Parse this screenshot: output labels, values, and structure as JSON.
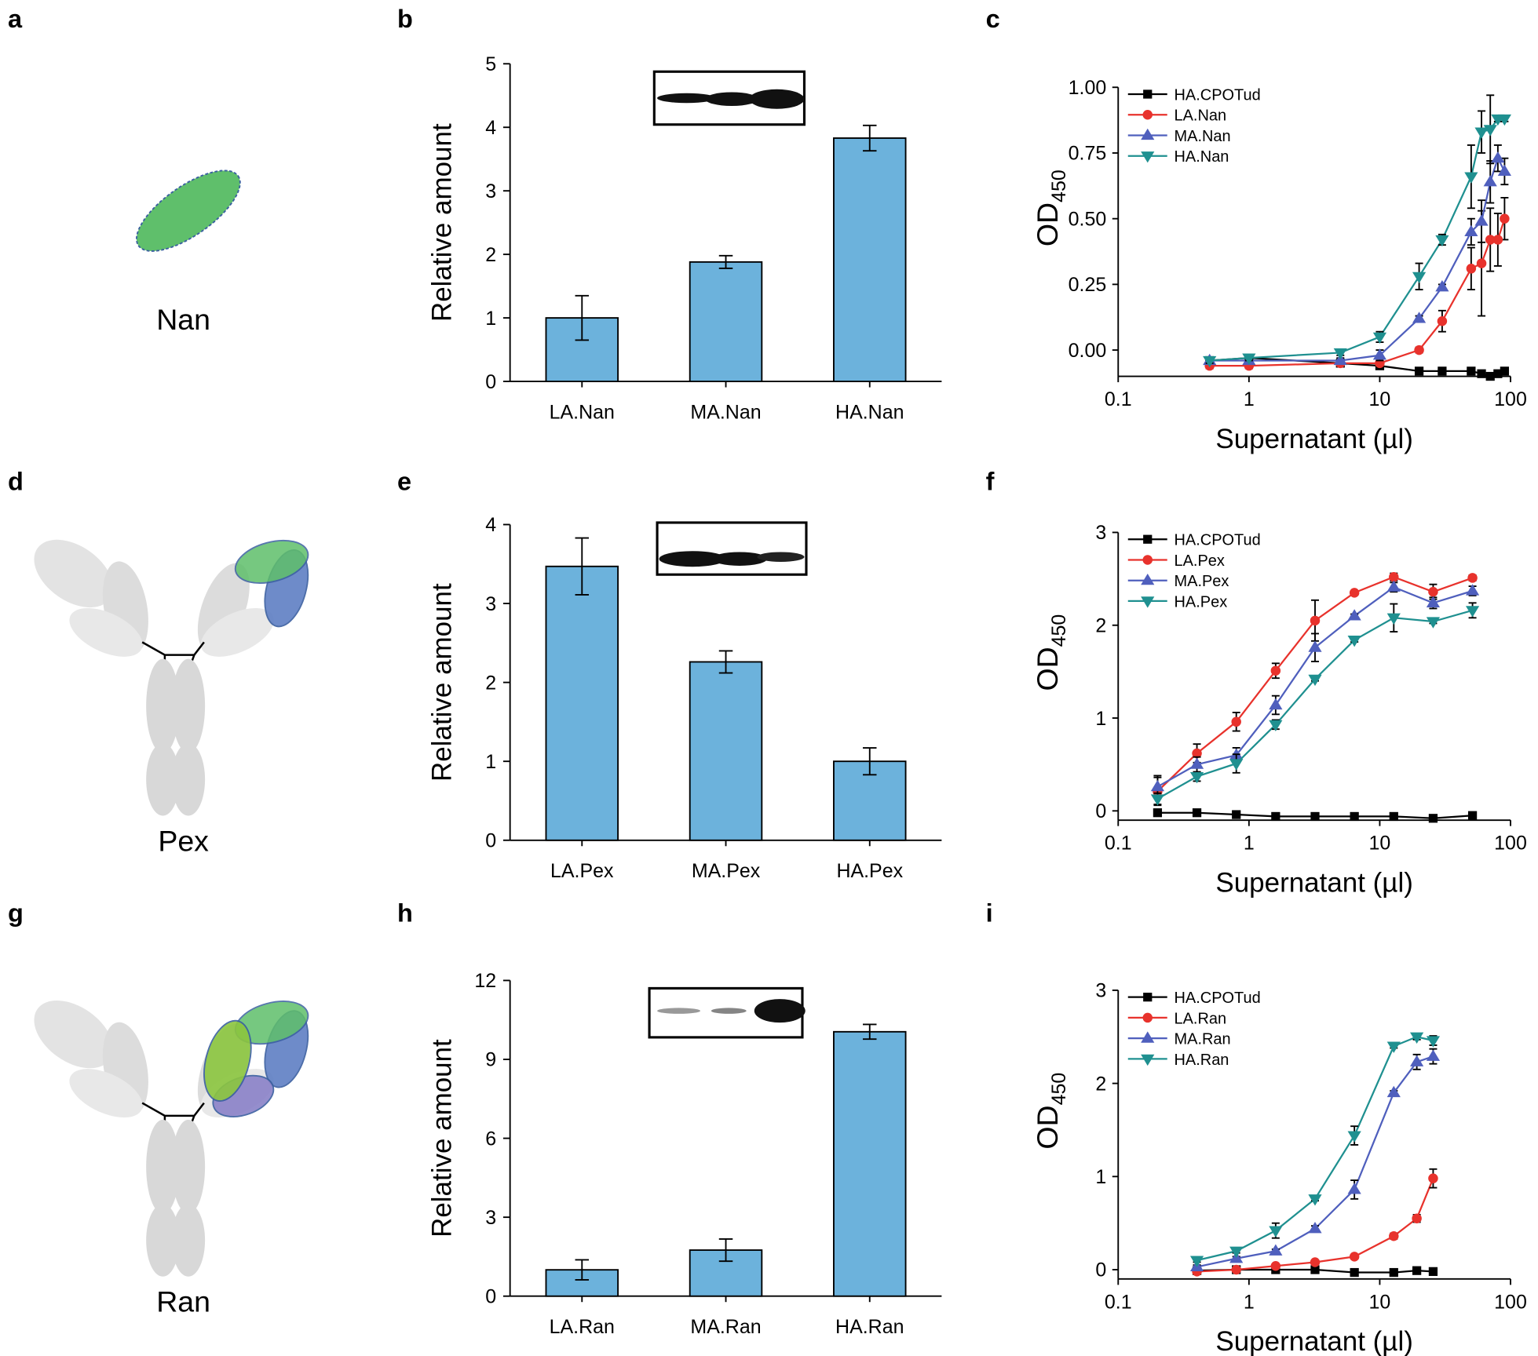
{
  "diagrams": [
    {
      "letter": "a",
      "label": "Nan"
    },
    {
      "letter": "d",
      "label": "Pex"
    },
    {
      "letter": "g",
      "label": "Ran"
    }
  ],
  "chart_data": [
    {
      "type": "bar",
      "letter": "b",
      "ylabel": "Relative amount",
      "color": "#6cb2dc",
      "categories": [
        "LA.Nan",
        "MA.Nan",
        "HA.Nan"
      ],
      "values": [
        1.0,
        1.88,
        3.83
      ],
      "errors": [
        0.35,
        0.1,
        0.2
      ],
      "ylim": [
        0,
        5
      ],
      "yticks": [
        0,
        1,
        2,
        3,
        4,
        5
      ]
    },
    {
      "type": "line",
      "letter": "c",
      "ylabel": "OD",
      "ylabel_sub": "450",
      "xlabel": "Supernatant (µl)",
      "xscale": "log",
      "xlim": [
        0.1,
        100
      ],
      "xticks": [
        0.1,
        1,
        10,
        100
      ],
      "ylim": [
        -0.1,
        1.0
      ],
      "yticks": [
        {
          "value": 0,
          "label": "0.00"
        },
        {
          "value": 0.25,
          "label": "0.25"
        },
        {
          "value": 0.5,
          "label": "0.50"
        },
        {
          "value": 0.75,
          "label": "0.75"
        },
        {
          "value": 1.0,
          "label": "1.00"
        }
      ],
      "legend": "upper left",
      "x": [
        0.5,
        1,
        5,
        10,
        20,
        30,
        50,
        60,
        70,
        80,
        90
      ],
      "series": [
        {
          "name": "HA.CPOTud",
          "color": "#000000",
          "marker": "square",
          "values": [
            -0.04,
            -0.03,
            -0.05,
            -0.06,
            -0.08,
            -0.08,
            -0.08,
            -0.09,
            -0.1,
            -0.09,
            -0.08
          ],
          "errors": [
            0.01,
            0.01,
            0.01,
            0.01,
            0.01,
            0.01,
            0.01,
            0.01,
            0.01,
            0.01,
            0.01
          ]
        },
        {
          "name": "LA.Nan",
          "color": "#e8322c",
          "marker": "circle",
          "values": [
            -0.06,
            -0.06,
            -0.05,
            -0.05,
            0.0,
            0.11,
            0.31,
            0.33,
            0.42,
            0.42,
            0.5
          ],
          "errors": [
            0.01,
            0.01,
            0.01,
            0.02,
            0.01,
            0.04,
            0.08,
            0.2,
            0.12,
            0.1,
            0.08
          ]
        },
        {
          "name": "MA.Nan",
          "color": "#4f5fbd",
          "marker": "triangle-up",
          "values": [
            -0.04,
            -0.04,
            -0.04,
            -0.02,
            0.12,
            0.24,
            0.45,
            0.49,
            0.64,
            0.73,
            0.68
          ],
          "errors": [
            0.01,
            0.01,
            0.01,
            0.02,
            0.01,
            0.01,
            0.05,
            0.08,
            0.08,
            0.05,
            0.05
          ]
        },
        {
          "name": "HA.Nan",
          "color": "#1f9090",
          "marker": "triangle-down",
          "values": [
            -0.04,
            -0.03,
            -0.01,
            0.05,
            0.28,
            0.42,
            0.66,
            0.83,
            0.84,
            0.88,
            0.88
          ],
          "errors": [
            0.01,
            0.01,
            0.01,
            0.02,
            0.05,
            0.02,
            0.12,
            0.08,
            0.13,
            0.01,
            0.01
          ]
        }
      ]
    },
    {
      "type": "bar",
      "letter": "e",
      "ylabel": "Relative amount",
      "color": "#6cb2dc",
      "categories": [
        "LA.Pex",
        "MA.Pex",
        "HA.Pex"
      ],
      "values": [
        3.47,
        2.26,
        1.0
      ],
      "errors": [
        0.36,
        0.14,
        0.17
      ],
      "ylim": [
        0,
        4
      ],
      "yticks": [
        0,
        1,
        2,
        3,
        4
      ]
    },
    {
      "type": "line",
      "letter": "f",
      "ylabel": "OD",
      "ylabel_sub": "450",
      "xlabel": "Supernatant (µl)",
      "xscale": "log",
      "xlim": [
        0.1,
        100
      ],
      "xticks": [
        0.1,
        1,
        10,
        100
      ],
      "ylim": [
        -0.1,
        3
      ],
      "yticks": [
        0,
        1,
        2,
        3
      ],
      "legend": "upper left",
      "x": [
        0.2,
        0.4,
        0.8,
        1.6,
        3.2,
        6.4,
        12.8,
        25.6,
        51.2
      ],
      "series": [
        {
          "name": "HA.CPOTud",
          "color": "#000000",
          "marker": "square",
          "values": [
            -0.02,
            -0.02,
            -0.04,
            -0.06,
            -0.06,
            -0.06,
            -0.06,
            -0.08,
            -0.05
          ],
          "errors": [
            0.01,
            0.01,
            0.01,
            0.01,
            0.01,
            0.01,
            0.01,
            0.01,
            0.02
          ]
        },
        {
          "name": "LA.Pex",
          "color": "#e8322c",
          "marker": "circle",
          "values": [
            0.21,
            0.62,
            0.96,
            1.51,
            2.05,
            2.35,
            2.52,
            2.36,
            2.51
          ],
          "errors": [
            0.15,
            0.1,
            0.1,
            0.08,
            0.22,
            0.02,
            0.04,
            0.08,
            0.03
          ]
        },
        {
          "name": "MA.Pex",
          "color": "#4f5fbd",
          "marker": "triangle-up",
          "values": [
            0.26,
            0.5,
            0.6,
            1.14,
            1.76,
            2.1,
            2.41,
            2.24,
            2.37
          ],
          "errors": [
            0.12,
            0.08,
            0.08,
            0.1,
            0.15,
            0.02,
            0.05,
            0.06,
            0.05
          ]
        },
        {
          "name": "HA.Pex",
          "color": "#1f9090",
          "marker": "triangle-down",
          "values": [
            0.13,
            0.37,
            0.51,
            0.93,
            1.42,
            1.84,
            2.08,
            2.04,
            2.16
          ],
          "errors": [
            0.06,
            0.05,
            0.1,
            0.05,
            0.02,
            0.02,
            0.15,
            0.02,
            0.08
          ]
        }
      ]
    },
    {
      "type": "bar",
      "letter": "h",
      "ylabel": "Relative amount",
      "color": "#6cb2dc",
      "categories": [
        "LA.Ran",
        "MA.Ran",
        "HA.Ran"
      ],
      "values": [
        1.0,
        1.75,
        10.05
      ],
      "errors": [
        0.38,
        0.42,
        0.28
      ],
      "ylim": [
        0,
        12
      ],
      "yticks": [
        0,
        3,
        6,
        9,
        12
      ]
    },
    {
      "type": "line",
      "letter": "i",
      "ylabel": "OD",
      "ylabel_sub": "450",
      "xlabel": "Supernatant (µl)",
      "xscale": "log",
      "xlim": [
        0.1,
        100
      ],
      "xticks": [
        0.1,
        1,
        10,
        100
      ],
      "ylim": [
        -0.1,
        3
      ],
      "yticks": [
        0,
        1,
        2,
        3
      ],
      "legend": "upper left",
      "x": [
        0.4,
        0.8,
        1.6,
        3.2,
        6.4,
        12.8,
        19.2,
        25.6
      ],
      "series": [
        {
          "name": "HA.CPOTud",
          "color": "#000000",
          "marker": "square",
          "values": [
            -0.01,
            0.0,
            0.0,
            0.0,
            -0.03,
            -0.03,
            -0.01,
            -0.02
          ],
          "errors": [
            0.01,
            0.01,
            0.01,
            0.01,
            0.01,
            0.01,
            0.01,
            0.01
          ]
        },
        {
          "name": "LA.Ran",
          "color": "#e8322c",
          "marker": "circle",
          "values": [
            -0.02,
            0.0,
            0.04,
            0.08,
            0.14,
            0.36,
            0.55,
            0.98
          ],
          "errors": [
            0.01,
            0.01,
            0.01,
            0.01,
            0.02,
            0.03,
            0.04,
            0.1
          ]
        },
        {
          "name": "MA.Ran",
          "color": "#4f5fbd",
          "marker": "triangle-up",
          "values": [
            0.03,
            0.12,
            0.2,
            0.44,
            0.86,
            1.9,
            2.23,
            2.29
          ],
          "errors": [
            0.02,
            0.02,
            0.02,
            0.03,
            0.1,
            0.02,
            0.08,
            0.08
          ]
        },
        {
          "name": "HA.Ran",
          "color": "#1f9090",
          "marker": "triangle-down",
          "values": [
            0.1,
            0.2,
            0.42,
            0.76,
            1.44,
            2.4,
            2.5,
            2.46
          ],
          "errors": [
            0.02,
            0.02,
            0.08,
            0.02,
            0.1,
            0.02,
            0.03,
            0.05
          ]
        }
      ]
    }
  ]
}
